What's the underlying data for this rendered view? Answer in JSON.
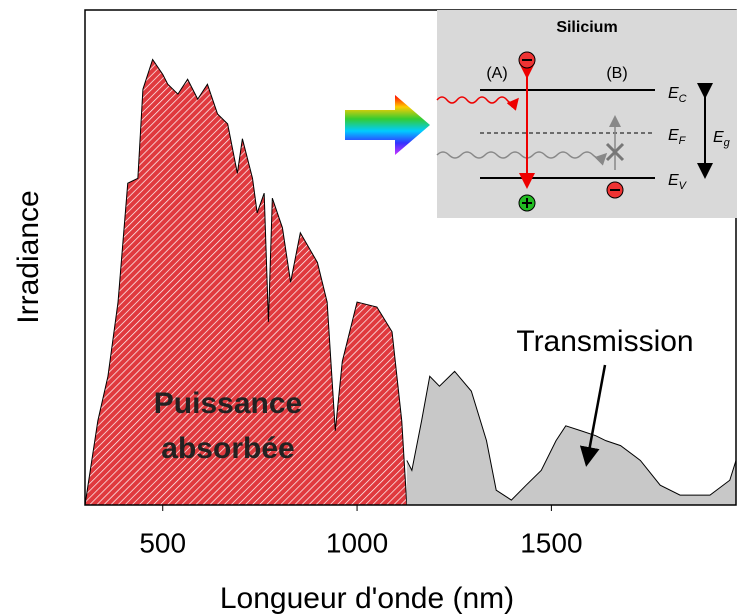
{
  "chart_data": {
    "type": "area",
    "xlabel": "Longueur d'onde (nm)",
    "ylabel": "Irradiance",
    "xlim": [
      300,
      1975
    ],
    "ylim": [
      0,
      100
    ],
    "xticks": [
      500,
      1000,
      1500
    ],
    "series": [
      {
        "name": "Puissance absorbée",
        "color": "#e0393e",
        "hatch": true,
        "x": [
          300,
          333,
          359,
          385,
          410,
          436,
          449,
          474,
          500,
          513,
          539,
          564,
          590,
          615,
          641,
          667,
          692,
          705,
          731,
          743,
          761,
          772,
          782,
          808,
          829,
          854,
          898,
          923,
          944,
          962,
          1000,
          1051,
          1090,
          1115,
          1128
        ],
        "values": [
          0,
          17,
          26,
          41,
          65,
          66,
          84,
          90,
          87,
          85,
          83,
          86,
          82,
          85,
          79,
          77,
          67,
          74,
          66,
          59,
          63,
          37,
          62,
          56,
          45,
          55,
          49,
          41,
          15,
          29,
          41,
          40,
          35,
          17,
          0
        ]
      },
      {
        "name": "Transmission",
        "color": "#c8c8c8",
        "hatch": false,
        "x": [
          1128,
          1141,
          1166,
          1187,
          1212,
          1251,
          1294,
          1333,
          1358,
          1397,
          1435,
          1474,
          1512,
          1537,
          1576,
          1614,
          1640,
          1678,
          1729,
          1780,
          1831,
          1908,
          1959,
          1975
        ],
        "values": [
          9,
          7,
          17,
          26,
          24,
          27,
          23,
          13,
          3,
          1,
          4,
          7,
          13,
          16,
          15,
          14,
          13,
          12,
          9,
          4,
          2,
          2,
          5,
          9
        ]
      }
    ],
    "annotations": {
      "absorbed": [
        "Puissance",
        "absorbée"
      ],
      "transmission": "Transmission"
    },
    "inset": {
      "title": "Silicium",
      "labels": [
        "(A)",
        "(B)"
      ],
      "levels": [
        {
          "main": "E",
          "sub": "C"
        },
        {
          "main": "E",
          "sub": "F"
        },
        {
          "main": "E",
          "sub": "V"
        }
      ],
      "gap": {
        "main": "E",
        "sub": "g"
      }
    }
  }
}
